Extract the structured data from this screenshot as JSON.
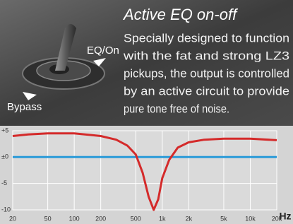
{
  "header": {
    "title": "Active EQ on-off"
  },
  "description": {
    "lines": [
      "Specially designed to function",
      "with the fat and strong LZ3",
      "pickups, the output is controlled",
      "by an active circuit to provide",
      "pure tone free of noise."
    ]
  },
  "switch_labels": {
    "on": "EQ/On",
    "off": "Bypass"
  },
  "chart_data": {
    "type": "line",
    "xlabel": "Hz",
    "log_x": true,
    "grid": true,
    "xlim": [
      20,
      20000
    ],
    "ylim": [
      -10,
      5
    ],
    "xticks": [
      20,
      50,
      100,
      200,
      500,
      {
        "value": 1000,
        "label": "1k"
      },
      {
        "value": 2000,
        "label": "2k"
      },
      {
        "value": 5000,
        "label": "5k"
      },
      {
        "value": 10000,
        "label": "10k"
      },
      {
        "value": 20000,
        "label": "20k"
      }
    ],
    "yticks": [
      {
        "value": 5,
        "label": "+5"
      },
      {
        "value": 0,
        "label": "±0"
      },
      -5,
      -10
    ],
    "series": [
      {
        "name": "EQ/On",
        "color": "#d42a2a",
        "x": [
          20,
          30,
          50,
          100,
          200,
          300,
          400,
          500,
          600,
          700,
          800,
          900,
          1000,
          1200,
          1500,
          2000,
          3000,
          5000,
          10000,
          20000
        ],
        "values": [
          4,
          4.3,
          4.5,
          4.5,
          4,
          3.3,
          2.2,
          0.5,
          -3,
          -7.5,
          -10,
          -8,
          -4,
          -0.5,
          1.8,
          2.8,
          3.3,
          3.5,
          3.5,
          3.2
        ]
      },
      {
        "name": "Bypass",
        "color": "#2a9ad8",
        "x": [
          20,
          20000
        ],
        "values": [
          0,
          0
        ]
      }
    ]
  }
}
